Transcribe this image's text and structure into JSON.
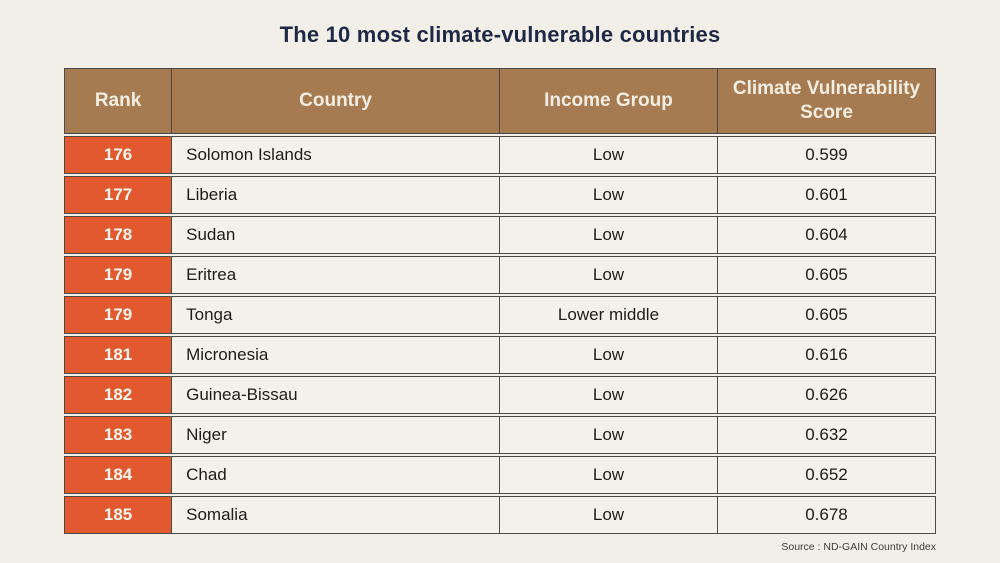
{
  "page": {
    "title": "The 10 most climate-vulnerable countries",
    "source": "Source : ND-GAIN Country Index"
  },
  "colors": {
    "background": "#F2EFE8",
    "title_text": "#1E2A45",
    "header_bg": "#A67B52",
    "header_text": "#F3EEE2",
    "rank_bg": "#E2592F",
    "rank_text": "#FCF7EE",
    "cell_bg": "#F4F1EA",
    "cell_text": "#1C1C1A",
    "border": "#4A4A47",
    "source_text": "#3F3B35"
  },
  "chart_data": {
    "type": "table",
    "title": "The 10 most climate-vulnerable countries",
    "columns": [
      "Rank",
      "Country",
      "Income Group",
      "Climate Vulnerability Score"
    ],
    "rows": [
      [
        "176",
        "Solomon Islands",
        "Low",
        "0.599"
      ],
      [
        "177",
        "Liberia",
        "Low",
        "0.601"
      ],
      [
        "178",
        "Sudan",
        "Low",
        "0.604"
      ],
      [
        "179",
        "Eritrea",
        "Low",
        "0.605"
      ],
      [
        "179",
        "Tonga",
        "Lower middle",
        "0.605"
      ],
      [
        "181",
        "Micronesia",
        "Low",
        "0.616"
      ],
      [
        "182",
        "Guinea-Bissau",
        "Low",
        "0.626"
      ],
      [
        "183",
        "Niger",
        "Low",
        "0.632"
      ],
      [
        "184",
        "Chad",
        "Low",
        "0.652"
      ],
      [
        "185",
        "Somalia",
        "Low",
        "0.678"
      ]
    ],
    "source": "Source : ND-GAIN Country Index"
  }
}
